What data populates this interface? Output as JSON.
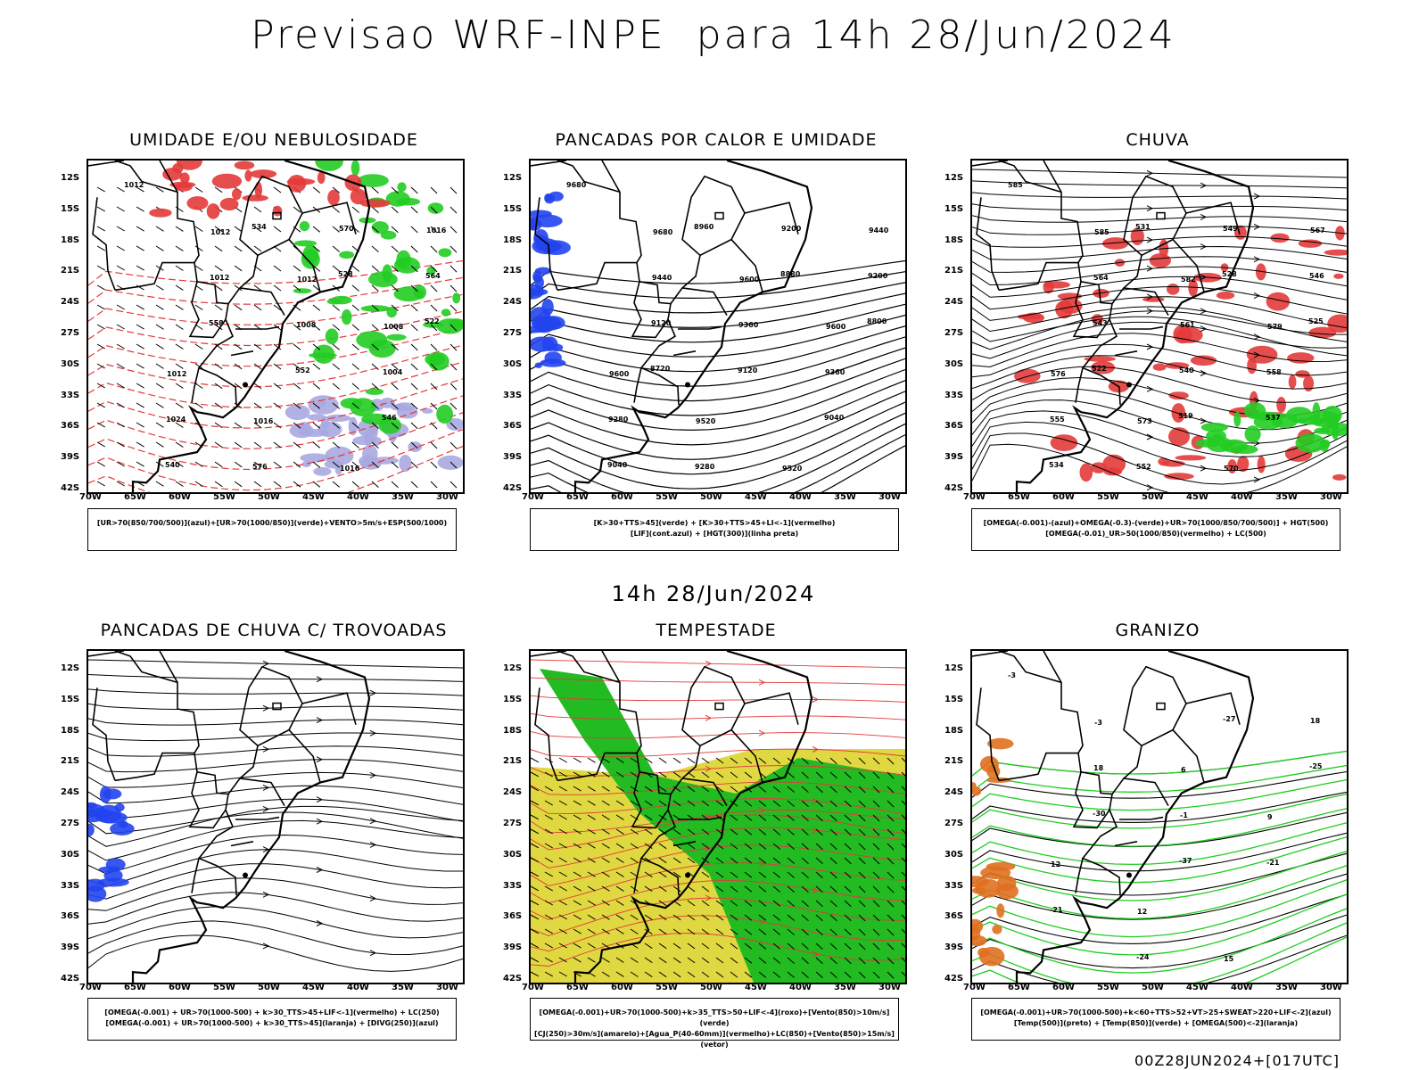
{
  "title": "Previsao WRF-INPE  para 14h 28/Jun/2024",
  "mid_time": "14h 28/Jun/2024",
  "footer": "00Z28JUN2024+[017UTC]",
  "lat_labels": [
    "12S",
    "15S",
    "18S",
    "21S",
    "24S",
    "27S",
    "30S",
    "33S",
    "36S",
    "39S",
    "42S"
  ],
  "lon_labels": [
    "70W",
    "65W",
    "60W",
    "55W",
    "50W",
    "45W",
    "40W",
    "35W",
    "30W"
  ],
  "colors": {
    "red": "#e33a3a",
    "green": "#22cc22",
    "blue": "#2244ee",
    "yellow": "#e0d840",
    "lavender": "#a8a8e0",
    "orange": "#e07020"
  },
  "panels": [
    {
      "title": "UMIDADE E/OU NEBULOSIDADE",
      "legend": [
        "[UR>70(850/700/500)](azul)+[UR>70(1000/850)](verde)+VENTO>5m/s+ESP(500/1000)"
      ],
      "contour_labels": [
        "1012",
        "1012",
        "1012",
        "1008",
        "1012",
        "1016",
        "1016",
        "1016",
        "1012",
        "1008",
        "1004",
        "1024",
        "576",
        "570",
        "564",
        "558",
        "552",
        "546",
        "540",
        "534",
        "528",
        "522"
      ]
    },
    {
      "title": "PANCADAS POR CALOR E UMIDADE",
      "legend": [
        "[K>30+TTS>45](verde) + [K>30+TTS>45+LI<-1](vermelho)",
        "[LIF](cont.azul) + [HGT(300)](linha preta)"
      ],
      "contour_labels": [
        "9680",
        "9680",
        "9600",
        "9600",
        "9600",
        "9520",
        "9520",
        "9440",
        "9440",
        "9360",
        "9360",
        "9280",
        "9280",
        "9200",
        "9200",
        "9120",
        "9120",
        "9040",
        "9040",
        "8960",
        "8880",
        "8800",
        "8720"
      ]
    },
    {
      "title": "CHUVA",
      "legend": [
        "[OMEGA(-0.001)-(azul)+OMEGA(-0.3)-(verde)+UR>70(1000/850/700/500)] + HGT(500)",
        "[OMEGA(-0.01)_UR>50(1000/850)(vermelho) + LC(500)"
      ],
      "contour_labels": [
        "585",
        "585",
        "582",
        "579",
        "576",
        "573",
        "570",
        "567",
        "564",
        "561",
        "558",
        "555",
        "552",
        "549",
        "546",
        "543",
        "540",
        "537",
        "534",
        "531",
        "528",
        "525",
        "522",
        "519"
      ]
    },
    {
      "title": "PANCADAS DE CHUVA C/ TROVOADAS",
      "legend": [
        "[OMEGA(-0.001) + UR>70(1000-500) + k>30_TTS>45+LIF<-1](vermelho) + LC(250)",
        "[OMEGA(-0.001) + UR>70(1000-500) + k>30_TTS>45](laranja) + [DIVG(250)](azul)"
      ],
      "contour_labels": []
    },
    {
      "title": "TEMPESTADE",
      "legend": [
        "[OMEGA(-0.001)+UR>70(1000-500)+k>35_TTS>50+LIF<-4](roxo)+[Vento(850)>10m/s](verde)",
        "[CJ(250)>30m/s](amarelo)+[Agua_P(40-60mm)](vermelho)+LC(850)+[Vento(850)>15m/s](vetor)"
      ],
      "contour_labels": []
    },
    {
      "title": "GRANIZO",
      "legend": [
        "[OMEGA(-0.001)+UR>70(1000-500)+k<60+TTS>52+VT>25+SWEAT>220+LIF<-2](azul)",
        "[Temp(500)](preto) + [Temp(850)](verde) + [OMEGA(500)<-2](laranja)"
      ],
      "contour_labels": [
        "-3",
        "-3",
        "6",
        "9",
        "12",
        "12",
        "15",
        "18",
        "18",
        "-1",
        "-21",
        "-21",
        "-24",
        "-27",
        "-25",
        "-30",
        "-37"
      ]
    }
  ]
}
